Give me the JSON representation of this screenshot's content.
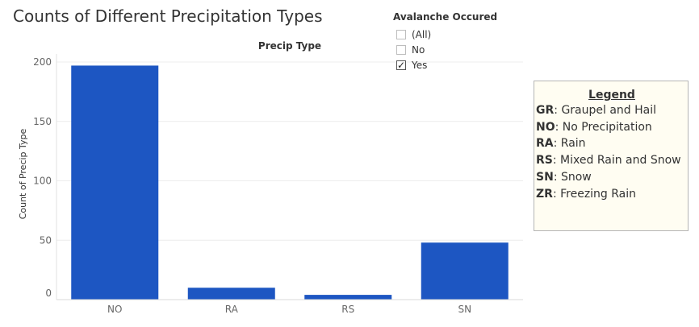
{
  "title": "Counts of Different Precipitation Types",
  "filter": {
    "title": "Avalanche Occured",
    "options": [
      {
        "label": "(All)",
        "checked": false
      },
      {
        "label": "No",
        "checked": false
      },
      {
        "label": "Yes",
        "checked": true
      }
    ]
  },
  "legend": {
    "title": "Legend",
    "items": [
      {
        "code": "GR",
        "desc": ": Graupel and Hail"
      },
      {
        "code": "NO",
        "desc": ": No Precipitation"
      },
      {
        "code": "RA",
        "desc": ": Rain"
      },
      {
        "code": "RS",
        "desc": ": Mixed Rain and Snow"
      },
      {
        "code": "SN",
        "desc": ": Snow"
      },
      {
        "code": "ZR",
        "desc": ": Freezing Rain"
      }
    ]
  },
  "chart_data": {
    "type": "bar",
    "title": "Precip Type",
    "xlabel": "",
    "ylabel": "Count of Precip Type",
    "categories": [
      "NO",
      "RA",
      "RS",
      "SN"
    ],
    "values": [
      197,
      10,
      4,
      48
    ],
    "ylim": [
      0,
      200
    ],
    "yticks": [
      0,
      50,
      100,
      150,
      200
    ],
    "bar_color": "#1d56c2",
    "grid": true
  }
}
